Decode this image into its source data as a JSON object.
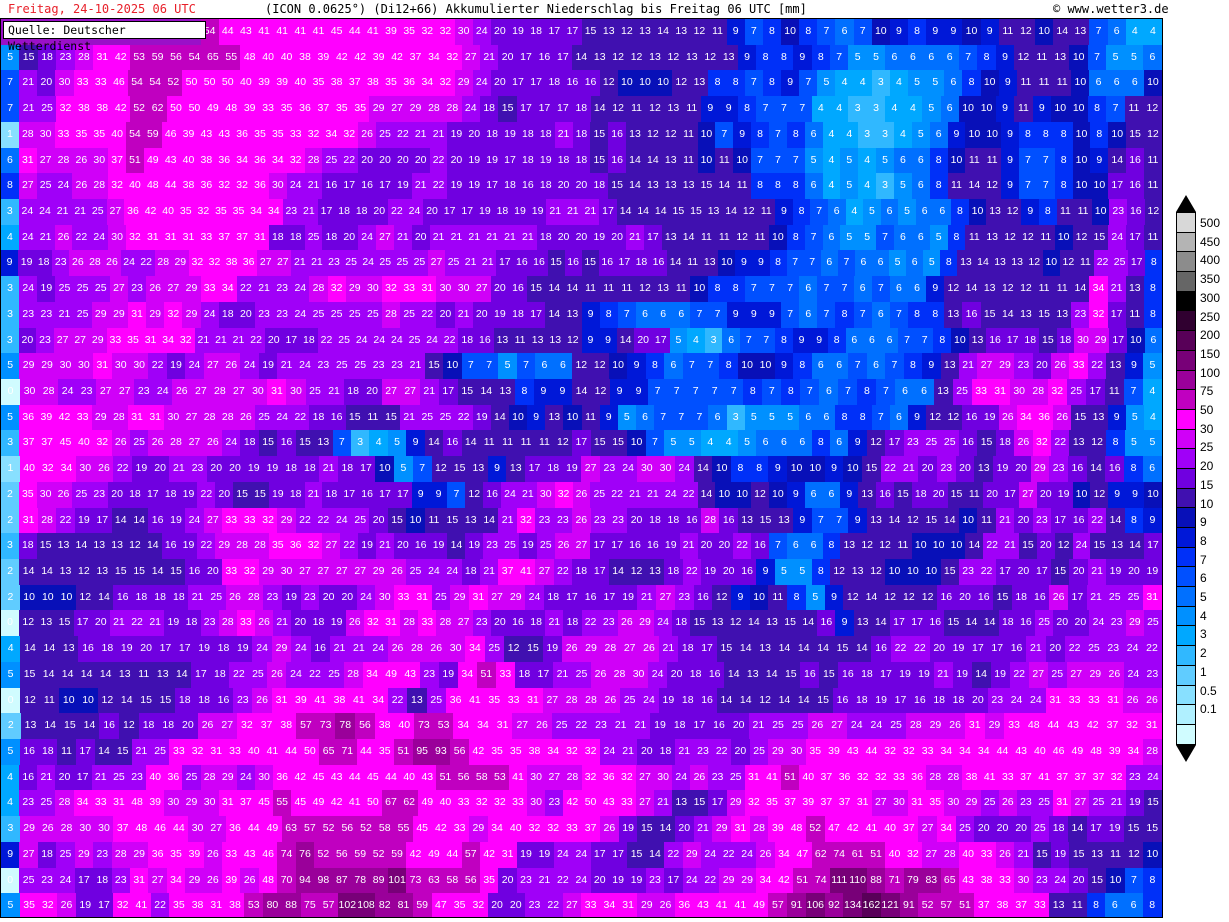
{
  "header": {
    "date": "Freitag, 24-10-2025   06 UTC",
    "model": "(ICON 0.0625°) (Di12+66)  Akkumulierter Niederschlag bis Freitag 06 UTC [mm]",
    "copyright": "© www.wetter3.de"
  },
  "source_label": "Quelle: Deutscher Wetterdienst",
  "legend": {
    "unit": "mm",
    "labels": [
      "500",
      "450",
      "400",
      "350",
      "300",
      "250",
      "200",
      "150",
      "100",
      "75",
      "50",
      "30",
      "25",
      "20",
      "15",
      "10",
      "9",
      "8",
      "7",
      "6",
      "5",
      "4",
      "3",
      "2",
      "1",
      "0.5",
      "0.1"
    ],
    "colors": [
      "#d8d8d8",
      "#b4b4b4",
      "#8c8c8c",
      "#666666",
      "#000000",
      "#300030",
      "#580058",
      "#780078",
      "#9a009a",
      "#c000c0",
      "#ff00ff",
      "#d000f8",
      "#a000f8",
      "#7000e0",
      "#4010b0",
      "#0810b8",
      "#0018d8",
      "#0030f8",
      "#0050ff",
      "#0070ff",
      "#0090ff",
      "#00a8ff",
      "#30b8ff",
      "#60ccff",
      "#88e0ff",
      "#b0f0ff",
      "#d0fcff"
    ]
  },
  "grid": [
    "- - - - - - - - - - - 54 44 43 41 41 41 41 45 44 41 39 35 32 32 30 24 20 19 18 17 17 15 13 12 13 14 13 12 11 9 7 8 10 8 7 6 7 10 9 8 9 9 10 9 11 12 10 14 13 7 6 4 4",
    "5 15 18 23 28 31 42 53 59 56 54 65 55 48 40 40 38 39 42 42 39 42 37 34 32 27 21 20 17 16 17 14 13 12 12 13 12 13 12 13 9 8 8 9 8 7 5 5 6 6 6 6 7 8 9 12 11 13 10 7 5 5 6",
    "7 21 20 30 33 33 46 54 54 52 50 50 50 40 39 39 40 35 38 37 38 35 36 34 32 29 24 20 17 17 18 16 16 12 10 10 10 12 13 8 8 7 8 9 7 5 4 4 3 4 5 5 6 8 10 9 11 11 11 10 6 6 6 10",
    "7 21 25 32 38 38 42 52 62 50 50 49 48 39 33 35 36 37 35 35 29 27 29 28 28 24 18 15 17 17 17 18 14 12 11 12 13 11 9 9 8 7 7 7 4 4 3 3 4 4 5 6 10 10 9 11 9 10 10 8 7 11 12",
    "1 28 30 33 35 35 40 54 59 46 39 43 43 36 35 35 33 32 34 32 26 25 22 21 21 19 20 18 19 18 18 21 18 15 16 13 12 12 11 10 7 9 8 7 8 6 4 4 3 3 4 5 6 9 10 10 9 8 8 8 10 8 10 15 12",
    "6 31 27 28 26 30 37 51 49 43 40 38 36 34 36 34 32 28 25 22 20 20 20 20 22 20 19 19 17 18 19 18 18 15 16 14 14 13 11 10 11 10 7 7 7 5 4 5 4 5 6 6 8 10 11 11 9 7 7 8 10 9 14 16 11",
    "8 27 25 24 26 28 32 40 48 44 38 36 32 32 36 30 24 21 16 17 16 17 19 21 22 19 19 17 18 16 18 20 20 18 15 14 13 13 13 15 14 11 8 8 8 6 4 5 4 3 5 6 8 11 14 12 9 7 7 8 10 10 17 16 11",
    "3 24 24 21 21 25 27 36 42 40 35 32 35 35 34 34 23 21 17 18 18 20 22 24 20 17 17 19 18 19 19 21 21 21 17 14 14 14 15 15 13 14 12 11 9 8 7 6 4 5 6 5 6 6 8 10 13 12 9 8 11 11 10 23 16 12",
    "4 24 21 26 22 24 30 32 31 31 31 33 37 37 31 18 18 25 18 20 24 27 21 20 21 21 21 21 21 21 18 20 20 19 20 21 17 13 14 11 11 12 11 10 8 7 6 5 5 7 6 6 5 8 11 13 12 12 11 10 12 15 24 17 11",
    "9 19 18 23 26 28 26 24 22 28 29 32 32 38 36 27 27 21 21 23 25 24 25 25 25 27 25 21 21 17 16 16 15 16 15 16 17 18 16 14 11 13 10 9 9 8 7 7 6 7 6 6 5 6 5 8 13 14 13 13 12 10 12 11 22 25 17 8",
    "3 24 19 25 25 25 27 23 26 27 29 33 34 22 21 23 24 28 32 29 30 32 33 31 30 30 27 20 16 15 14 14 11 11 11 12 13 11 10 8 8 7 7 7 6 7 7 6 7 6 6 9 12 14 13 12 12 11 11 14 34 21 13 8",
    "3 23 23 21 25 29 29 31 29 32 29 24 18 20 23 23 24 25 25 25 25 28 25 22 20 21 20 19 18 17 14 13 9 8 7 6 6 6 7 7 9 9 9 7 6 7 8 7 6 7 8 8 13 16 15 14 13 15 13 23 32 17 11 8",
    "3 20 23 27 27 29 33 35 31 34 32 21 21 21 22 20 17 18 22 25 24 24 24 25 24 22 18 16 13 11 13 13 12 9 9 14 20 17 5 4 3 6 7 7 8 9 9 8 6 6 6 7 7 8 10 13 16 17 18 15 18 30 29 17 10 6",
    "5 29 29 30 30 31 30 30 22 19 24 27 26 24 19 21 24 23 25 25 23 23 21 15 10 7 7 5 7 6 6 12 12 10 9 8 6 7 7 8 10 10 9 8 6 6 7 6 7 8 9 13 21 27 29 23 20 26 33 22 13 9 5",
    "0 30 28 24 23 27 27 23 24 26 27 28 27 30 31 30 25 21 18 20 27 27 21 17 15 14 13 8 9 9 14 12 9 9 7 7 7 7 7 8 7 8 7 6 7 8 7 6 6 13 25 33 31 30 28 32 25 17 11 7 4",
    "5 36 39 42 33 29 28 31 31 30 27 28 28 26 25 24 22 18 16 15 11 15 21 25 25 22 19 14 10 9 13 10 11 9 5 6 7 7 7 6 3 5 5 5 6 6 8 8 7 6 9 12 12 16 19 26 34 36 26 15 13 9 5 4",
    "3 37 37 45 40 32 26 25 26 28 27 26 24 18 15 16 15 13 7 3 4 5 9 14 16 14 11 11 11 11 12 17 15 15 10 7 5 5 4 4 5 6 6 6 8 6 9 12 17 23 25 25 16 15 18 26 32 22 13 12 8 5 5",
    "1 40 32 34 30 26 22 19 20 21 23 20 20 19 19 18 18 21 18 17 10 5 7 12 15 13 9 13 17 18 19 27 23 24 30 30 24 14 10 8 8 9 10 10 9 10 15 22 21 20 23 20 13 19 20 29 23 16 14 16 8 6",
    "2 35 30 26 25 23 20 18 17 18 19 22 20 15 15 19 18 21 18 17 16 17 17 9 9 7 12 16 24 21 30 32 26 25 22 21 21 24 22 14 10 10 12 10 9 6 6 9 13 16 15 18 20 15 11 20 17 27 20 19 10 12 9 9 10",
    "2 31 28 22 19 17 14 14 16 19 24 27 33 33 32 29 22 22 24 25 20 15 10 11 15 13 14 21 32 23 23 26 23 23 20 18 18 16 28 16 13 15 13 9 7 7 9 13 14 12 15 14 10 11 21 20 23 17 16 22 14 8 9",
    "3 18 15 13 14 13 13 12 14 16 19 22 29 28 28 35 36 32 27 22 19 21 20 16 19 14 19 23 25 19 25 26 27 17 17 16 16 19 21 20 20 22 16 7 6 6 8 13 12 12 11 10 10 10 14 22 21 15 20 12 24 15 13 14 17",
    "2 14 14 13 12 13 15 15 14 15 16 20 33 32 29 30 27 27 27 27 29 26 25 24 24 18 21 37 41 27 22 18 17 14 12 13 18 22 19 20 16 9 5 5 8 12 13 12 10 10 10 15 23 22 17 20 17 15 20 21 19 20 19",
    "2 10 10 10 12 14 16 18 18 18 21 25 26 28 23 19 23 20 20 24 30 33 31 25 29 31 27 29 24 18 17 16 17 19 21 27 23 16 12 9 10 11 8 5 9 12 14 12 12 12 16 20 16 15 18 16 26 17 21 25 25 31",
    "0 12 13 15 17 20 21 22 21 19 18 23 28 33 26 21 20 18 19 26 32 31 28 33 28 27 23 20 16 18 21 18 22 23 26 29 24 18 15 13 12 14 13 15 14 16 9 13 14 17 17 16 15 14 14 18 16 25 20 20 24 23 29 25",
    "4 14 14 13 16 18 19 20 17 17 19 18 19 24 29 24 16 21 21 24 26 28 26 30 34 25 12 15 19 26 29 28 27 26 21 18 17 15 14 13 14 14 14 15 14 16 22 22 20 19 17 17 16 21 20 22 25 23 24 22",
    "5 15 14 14 14 14 13 11 13 14 17 18 22 25 26 24 22 25 28 34 49 43 23 19 34 51 33 18 17 21 25 26 28 30 24 20 18 16 14 13 14 15 16 15 16 18 17 19 19 21 19 14 19 22 27 25 27 29 26 24 23",
    "0 12 11 10 10 12 14 15 15 18 18 16 23 26 31 39 41 38 41 34 22 13 25 36 41 35 33 31 27 28 28 26 25 24 19 18 16 14 14 12 14 14 15 16 18 19 17 16 18 18 20 23 24 24 31 33 33 31 26 26",
    "2 13 14 15 14 16 12 18 18 20 26 27 32 37 38 57 73 78 56 38 40 73 53 34 34 31 27 26 25 22 23 21 21 19 18 17 16 20 21 25 25 26 27 24 24 25 28 29 26 31 29 33 48 44 43 42 37 32 31",
    "5 16 18 11 17 14 15 21 25 33 32 31 33 40 41 44 50 65 71 44 35 51 95 93 56 42 35 35 38 34 32 32 24 21 20 18 21 23 22 20 25 29 30 35 39 43 44 32 32 33 34 34 34 44 43 40 46 49 48 39 34 28",
    "4 16 21 20 17 21 25 23 40 36 25 28 29 24 30 36 42 45 43 44 45 44 40 43 51 56 58 53 41 30 27 28 32 36 32 27 30 24 26 23 25 31 41 51 40 37 36 32 32 33 36 28 28 38 41 33 37 41 37 37 37 32 23 24",
    "4 23 25 28 34 33 31 48 39 30 29 30 31 37 45 55 45 49 42 41 50 67 62 49 40 33 32 32 33 30 23 42 50 43 33 27 21 13 15 17 29 32 35 37 39 37 37 31 27 30 31 35 30 29 25 26 23 25 31 27 25 21 19 15",
    "3 29 26 28 30 30 37 48 46 44 30 27 36 44 49 63 57 52 56 52 58 55 45 42 33 29 34 40 32 32 33 37 26 19 15 14 20 21 29 31 28 39 48 52 47 42 41 40 37 27 34 25 20 20 20 25 18 14 17 19 15 15",
    "9 27 18 25 29 23 28 29 36 35 39 26 33 43 46 74 76 52 56 59 52 59 42 49 44 57 42 31 19 19 24 24 17 17 15 14 22 29 24 22 24 26 34 47 62 74 61 51 40 32 27 28 40 33 26 21 15 19 15 13 11 12 10",
    "0 25 23 24 17 18 23 31 27 34 29 26 39 26 48 70 94 98 87 78 89 101 73 63 58 56 35 20 23 21 22 24 20 19 19 23 17 24 22 29 29 34 42 51 74 111 110 88 71 79 83 65 43 38 33 30 23 24 20 15 10 7 8",
    "5 35 32 26 19 17 32 41 22 35 38 31 38 53 80 88 75 57 102 108 82 81 59 47 35 32 20 20 23 22 27 33 34 31 29 26 36 43 41 41 49 57 91 106 92 134 162 121 91 52 57 51 37 38 37 33 13 11 8 6 6 8"
  ]
}
